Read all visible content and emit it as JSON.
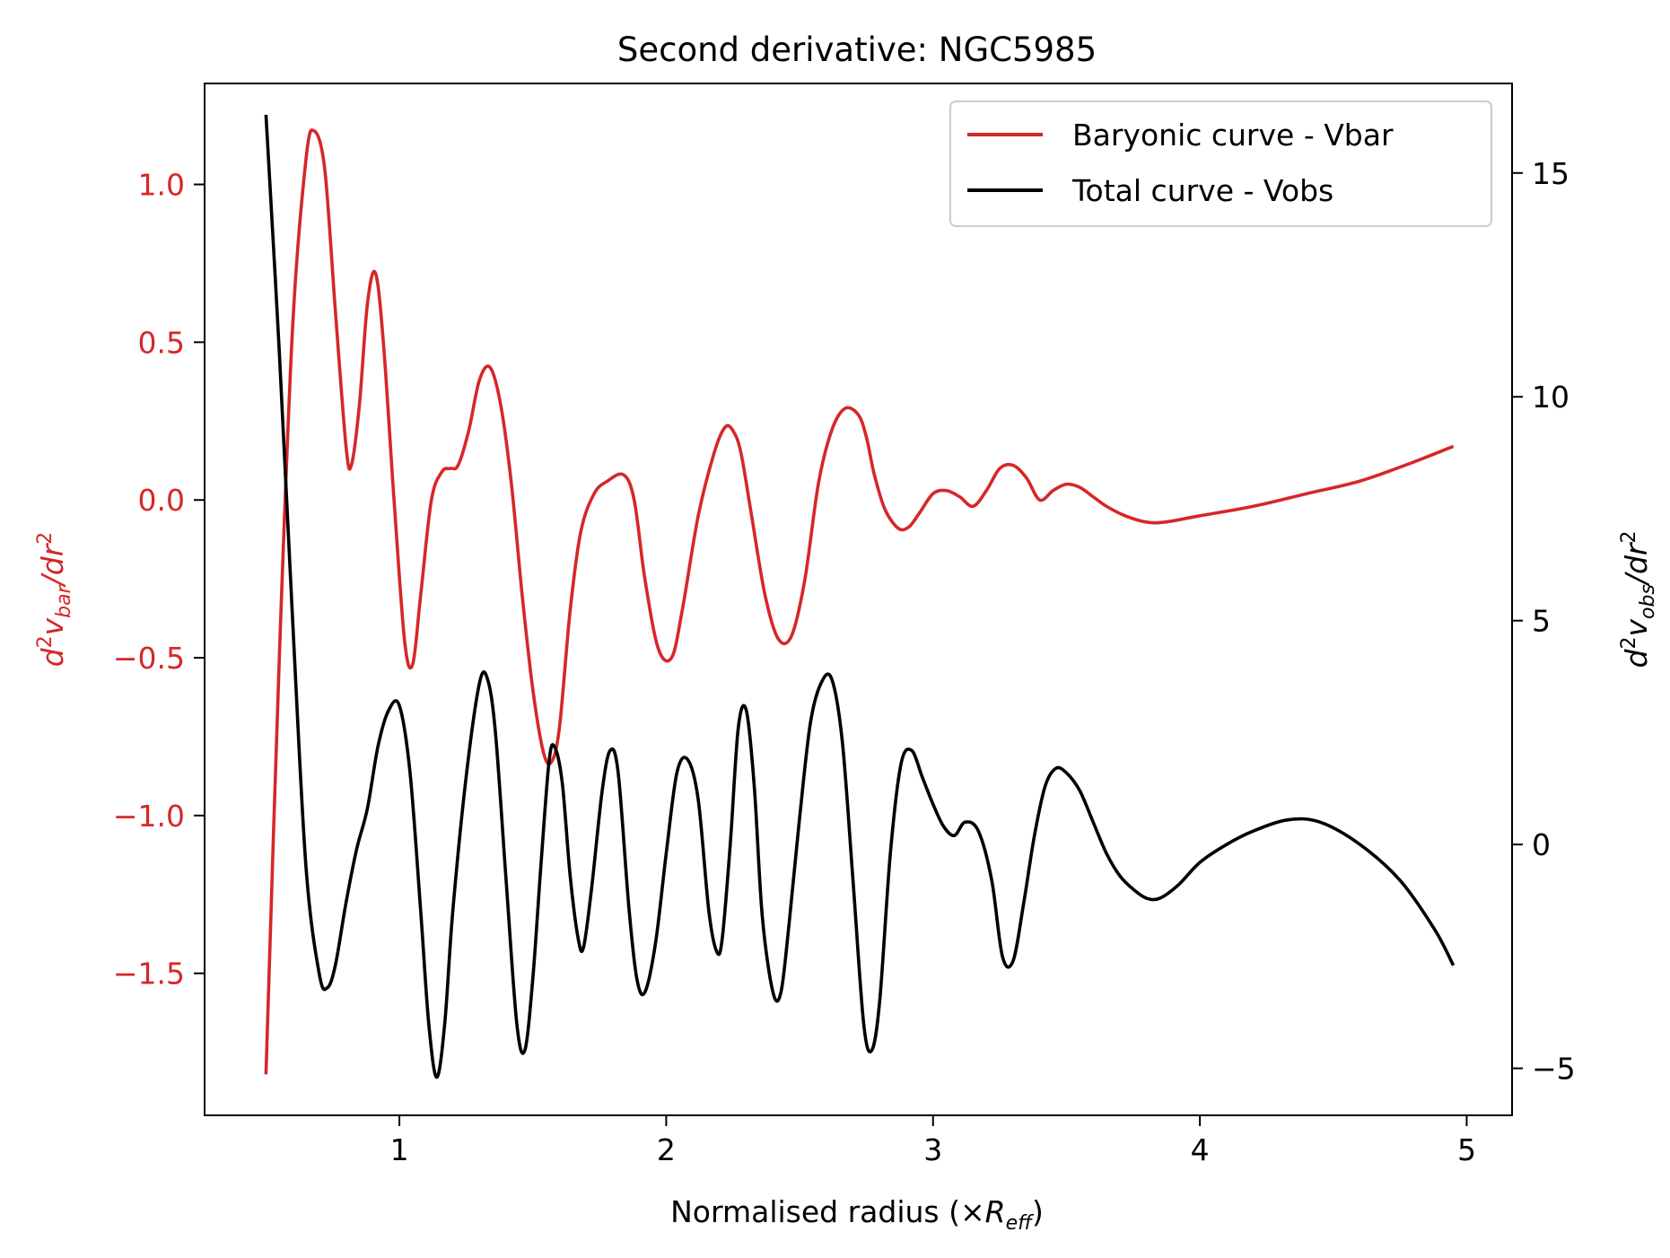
{
  "chart_data": {
    "type": "line",
    "title": "Second derivative: NGC5985",
    "xlabel_main": "Normalised radius (×",
    "xlabel_var": "R",
    "xlabel_sub": "eff",
    "xlabel_tail": ")",
    "xlim": [
      0.27,
      5.17
    ],
    "x_ticks": [
      1,
      2,
      3,
      4,
      5
    ],
    "y_left": {
      "label": "d²v_bar/dr²",
      "color": "#d62728",
      "lim": [
        -1.95,
        1.32
      ],
      "ticks": [
        1.0,
        0.5,
        0.0,
        -0.5,
        -1.0,
        -1.5
      ],
      "tick_labels": [
        "1.0",
        "0.5",
        "0.0",
        "−0.5",
        "−1.0",
        "−1.5"
      ]
    },
    "y_right": {
      "label": "d²v_obs/dr²",
      "color": "#000000",
      "lim": [
        -6.05,
        17.0
      ],
      "ticks": [
        15,
        10,
        5,
        0,
        -5
      ],
      "tick_labels": [
        "15",
        "10",
        "5",
        "0",
        "−5"
      ]
    },
    "legend_position": "top-right",
    "series": [
      {
        "name": "Baryonic curve - Vbar",
        "axis": "left",
        "color": "#d62728",
        "x": [
          0.5,
          0.55,
          0.6,
          0.65,
          0.68,
          0.72,
          0.76,
          0.8,
          0.82,
          0.85,
          0.88,
          0.91,
          0.94,
          0.98,
          1.02,
          1.05,
          1.08,
          1.12,
          1.16,
          1.19,
          1.22,
          1.26,
          1.3,
          1.34,
          1.38,
          1.42,
          1.46,
          1.5,
          1.54,
          1.57,
          1.6,
          1.64,
          1.68,
          1.73,
          1.78,
          1.84,
          1.88,
          1.92,
          1.97,
          2.02,
          2.06,
          2.12,
          2.18,
          2.22,
          2.25,
          2.28,
          2.32,
          2.37,
          2.42,
          2.47,
          2.52,
          2.57,
          2.62,
          2.67,
          2.72,
          2.75,
          2.78,
          2.82,
          2.87,
          2.91,
          2.95,
          3.0,
          3.05,
          3.1,
          3.15,
          3.2,
          3.25,
          3.3,
          3.35,
          3.4,
          3.45,
          3.5,
          3.55,
          3.6,
          3.65,
          3.72,
          3.8,
          3.87,
          4.0,
          4.2,
          4.4,
          4.6,
          4.8,
          4.95
        ],
        "y": [
          -1.82,
          -0.5,
          0.55,
          1.08,
          1.17,
          1.05,
          0.6,
          0.17,
          0.11,
          0.3,
          0.62,
          0.72,
          0.5,
          0.0,
          -0.45,
          -0.52,
          -0.3,
          0.0,
          0.09,
          0.1,
          0.11,
          0.22,
          0.38,
          0.42,
          0.3,
          0.05,
          -0.3,
          -0.6,
          -0.8,
          -0.83,
          -0.72,
          -0.35,
          -0.1,
          0.02,
          0.06,
          0.08,
          0.0,
          -0.25,
          -0.47,
          -0.5,
          -0.35,
          -0.05,
          0.15,
          0.23,
          0.22,
          0.15,
          -0.05,
          -0.3,
          -0.44,
          -0.43,
          -0.25,
          0.05,
          0.22,
          0.29,
          0.27,
          0.2,
          0.08,
          -0.03,
          -0.09,
          -0.085,
          -0.04,
          0.02,
          0.03,
          0.01,
          -0.02,
          0.03,
          0.1,
          0.11,
          0.07,
          0.0,
          0.03,
          0.05,
          0.04,
          0.01,
          -0.02,
          -0.05,
          -0.07,
          -0.07,
          -0.05,
          -0.02,
          0.02,
          0.06,
          0.12,
          0.17
        ]
      },
      {
        "name": "Total curve - Vobs",
        "axis": "right",
        "color": "#000000",
        "x": [
          0.5,
          0.55,
          0.6,
          0.65,
          0.7,
          0.73,
          0.76,
          0.8,
          0.84,
          0.88,
          0.92,
          0.96,
          1.0,
          1.04,
          1.08,
          1.11,
          1.14,
          1.17,
          1.2,
          1.25,
          1.3,
          1.33,
          1.36,
          1.4,
          1.44,
          1.47,
          1.5,
          1.53,
          1.56,
          1.58,
          1.61,
          1.64,
          1.67,
          1.69,
          1.72,
          1.76,
          1.79,
          1.82,
          1.86,
          1.89,
          1.92,
          1.96,
          2.0,
          2.04,
          2.08,
          2.12,
          2.16,
          2.19,
          2.21,
          2.24,
          2.27,
          2.3,
          2.33,
          2.36,
          2.4,
          2.43,
          2.46,
          2.5,
          2.54,
          2.58,
          2.62,
          2.66,
          2.7,
          2.74,
          2.77,
          2.8,
          2.84,
          2.88,
          2.92,
          2.96,
          3.0,
          3.04,
          3.08,
          3.12,
          3.17,
          3.22,
          3.26,
          3.3,
          3.34,
          3.38,
          3.42,
          3.46,
          3.5,
          3.55,
          3.6,
          3.65,
          3.7,
          3.75,
          3.8,
          3.85,
          3.92,
          4.0,
          4.1,
          4.2,
          4.33,
          4.45,
          4.6,
          4.75,
          4.88,
          4.95
        ],
        "y": [
          16.3,
          11.0,
          5.0,
          -0.5,
          -2.9,
          -3.2,
          -2.7,
          -1.3,
          -0.1,
          0.8,
          2.2,
          3.0,
          3.1,
          1.6,
          -1.5,
          -4.0,
          -5.2,
          -4.0,
          -1.5,
          1.5,
          3.6,
          3.7,
          2.5,
          -0.8,
          -4.0,
          -4.6,
          -3.0,
          -0.5,
          1.8,
          2.2,
          1.4,
          -0.7,
          -2.1,
          -2.3,
          -1.0,
          1.2,
          2.1,
          1.6,
          -1.4,
          -3.0,
          -3.3,
          -2.2,
          -0.2,
          1.6,
          1.9,
          1.0,
          -1.5,
          -2.4,
          -2.1,
          0.0,
          2.6,
          3.0,
          1.3,
          -1.6,
          -3.3,
          -3.3,
          -1.8,
          0.6,
          2.7,
          3.6,
          3.7,
          2.3,
          -0.8,
          -4.0,
          -4.6,
          -3.5,
          -0.2,
          1.8,
          2.1,
          1.5,
          0.9,
          0.4,
          0.2,
          0.5,
          0.3,
          -0.8,
          -2.5,
          -2.6,
          -1.3,
          0.2,
          1.3,
          1.7,
          1.6,
          1.2,
          0.5,
          -0.2,
          -0.7,
          -1.0,
          -1.2,
          -1.2,
          -0.9,
          -0.4,
          0.0,
          0.3,
          0.55,
          0.5,
          0.0,
          -0.8,
          -1.9,
          -2.7
        ]
      }
    ]
  }
}
